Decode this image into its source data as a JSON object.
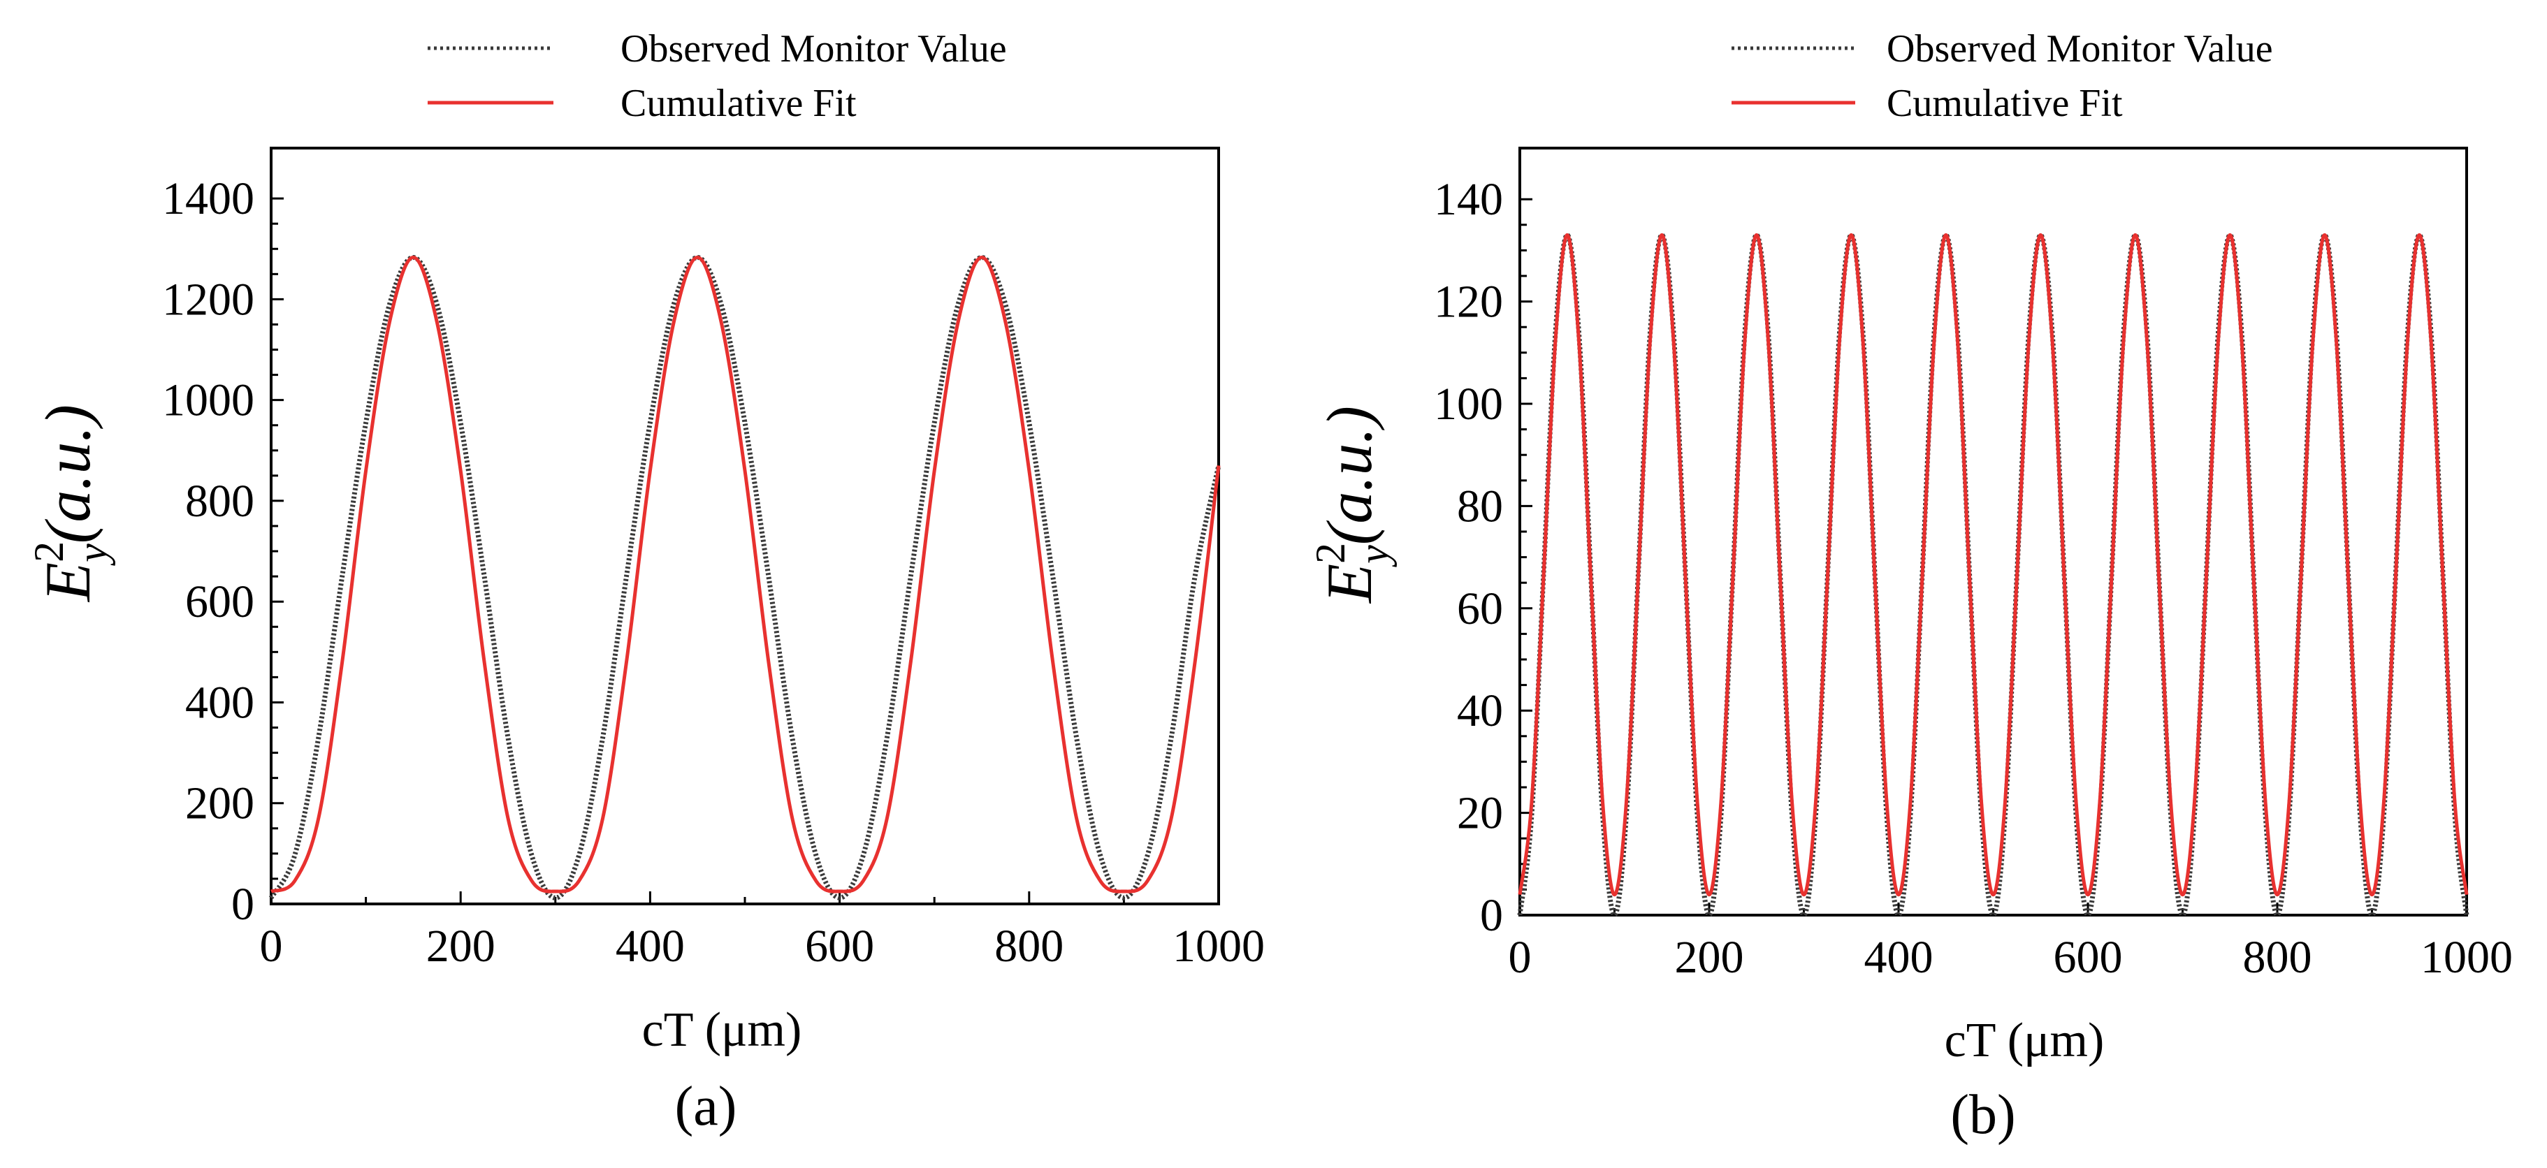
{
  "colors": {
    "observed": "#3a3a3a",
    "fit": "#e8312f",
    "axis": "#000000"
  },
  "chart_data": [
    {
      "type": "line",
      "panel_label": "(a)",
      "xlabel": "cT (μm)",
      "ylabel": {
        "base": "E",
        "sub": "y",
        "sup": "2",
        "rest": "(a.u.)"
      },
      "xlim": [
        0,
        1000
      ],
      "ylim": [
        0,
        1500
      ],
      "xticks": [
        "0",
        "200",
        "400",
        "600",
        "800",
        "1000"
      ],
      "yticks": [
        "0",
        "200",
        "400",
        "600",
        "800",
        "1000",
        "1200",
        "1400"
      ],
      "legend": {
        "position": "top",
        "entries": [
          "Observed Monitor Value",
          "Cumulative Fit"
        ]
      },
      "series": [
        {
          "name": "Observed Monitor Value",
          "style": "dotted",
          "x": [
            0,
            25,
            50,
            75,
            100,
            125,
            150,
            175,
            200,
            225,
            250,
            275,
            300,
            325,
            350,
            375,
            400,
            425,
            450,
            475,
            500,
            525,
            550,
            575,
            600,
            625,
            650,
            675,
            700,
            725,
            750,
            775,
            800,
            825,
            850,
            875,
            900,
            925,
            950,
            975,
            1000
          ],
          "y": [
            12,
            97,
            330,
            650,
            955,
            1190,
            1283,
            1190,
            955,
            650,
            330,
            97,
            12,
            97,
            330,
            650,
            955,
            1190,
            1283,
            1190,
            955,
            650,
            330,
            97,
            12,
            97,
            330,
            650,
            955,
            1190,
            1283,
            1190,
            955,
            650,
            330,
            97,
            12,
            97,
            330,
            650,
            870
          ]
        },
        {
          "name": "Cumulative Fit",
          "style": "solid",
          "x": [
            0,
            25,
            50,
            75,
            100,
            125,
            150,
            175,
            200,
            225,
            250,
            275,
            300,
            325,
            350,
            375,
            400,
            425,
            450,
            475,
            500,
            525,
            550,
            575,
            600,
            625,
            650,
            675,
            700,
            725,
            750,
            775,
            800,
            825,
            850,
            875,
            900,
            925,
            950,
            975,
            1000
          ],
          "y": [
            25,
            46,
            170,
            480,
            860,
            1155,
            1283,
            1155,
            860,
            480,
            170,
            46,
            25,
            46,
            170,
            480,
            860,
            1155,
            1283,
            1155,
            860,
            480,
            170,
            46,
            25,
            46,
            170,
            480,
            860,
            1155,
            1283,
            1155,
            860,
            480,
            170,
            46,
            25,
            46,
            170,
            480,
            870
          ]
        }
      ]
    },
    {
      "type": "line",
      "panel_label": "(b)",
      "xlabel": "cT (μm)",
      "ylabel": {
        "base": "E",
        "sub": "y",
        "sup": "2",
        "rest": "(a.u.)"
      },
      "xlim": [
        0,
        1000
      ],
      "ylim": [
        0,
        150
      ],
      "xticks": [
        "0",
        "200",
        "400",
        "600",
        "800",
        "1000"
      ],
      "yticks": [
        "0",
        "20",
        "40",
        "60",
        "80",
        "100",
        "120",
        "140"
      ],
      "legend": {
        "position": "top",
        "entries": [
          "Observed Monitor Value",
          "Cumulative Fit"
        ]
      },
      "series": [
        {
          "name": "Observed Monitor Value",
          "style": "dotted",
          "x": [
            0,
            12.5,
            25,
            37.5,
            50,
            62.5,
            75,
            87.5,
            100,
            112.5,
            125,
            137.5,
            150,
            162.5,
            175,
            187.5,
            200,
            212.5,
            225,
            237.5,
            250,
            262.5,
            275,
            287.5,
            300,
            312.5,
            325,
            337.5,
            350,
            362.5,
            375,
            387.5,
            400,
            412.5,
            425,
            437.5,
            450,
            462.5,
            475,
            487.5,
            500,
            512.5,
            525,
            537.5,
            550,
            562.5,
            575,
            587.5,
            600,
            612.5,
            625,
            637.5,
            650,
            662.5,
            675,
            687.5,
            700,
            712.5,
            725,
            737.5,
            750,
            762.5,
            775,
            787.5,
            800,
            812.5,
            825,
            837.5,
            850,
            862.5,
            875,
            887.5,
            900,
            912.5,
            925,
            937.5,
            950,
            962.5,
            975,
            987.5,
            1000
          ],
          "y": [
            0,
            19.5,
            66.5,
            113.5,
            133,
            113.5,
            66.5,
            19.5,
            0,
            19.5,
            66.5,
            113.5,
            133,
            113.5,
            66.5,
            19.5,
            0,
            19.5,
            66.5,
            113.5,
            133,
            113.5,
            66.5,
            19.5,
            0,
            19.5,
            66.5,
            113.5,
            133,
            113.5,
            66.5,
            19.5,
            0,
            19.5,
            66.5,
            113.5,
            133,
            113.5,
            66.5,
            19.5,
            0,
            19.5,
            66.5,
            113.5,
            133,
            113.5,
            66.5,
            19.5,
            0,
            19.5,
            66.5,
            113.5,
            133,
            113.5,
            66.5,
            19.5,
            0,
            19.5,
            66.5,
            113.5,
            133,
            113.5,
            66.5,
            19.5,
            0,
            19.5,
            66.5,
            113.5,
            133,
            113.5,
            66.5,
            19.5,
            0,
            19.5,
            66.5,
            113.5,
            133,
            113.5,
            66.5,
            19.5,
            0
          ]
        },
        {
          "name": "Cumulative Fit",
          "style": "solid",
          "x": [
            0,
            12.5,
            25,
            37.5,
            50,
            62.5,
            75,
            87.5,
            100,
            112.5,
            125,
            137.5,
            150,
            162.5,
            175,
            187.5,
            200,
            212.5,
            225,
            237.5,
            250,
            262.5,
            275,
            287.5,
            300,
            312.5,
            325,
            337.5,
            350,
            362.5,
            375,
            387.5,
            400,
            412.5,
            425,
            437.5,
            450,
            462.5,
            475,
            487.5,
            500,
            512.5,
            525,
            537.5,
            550,
            562.5,
            575,
            587.5,
            600,
            612.5,
            625,
            637.5,
            650,
            662.5,
            675,
            687.5,
            700,
            712.5,
            725,
            737.5,
            750,
            762.5,
            775,
            787.5,
            800,
            812.5,
            825,
            837.5,
            850,
            862.5,
            875,
            887.5,
            900,
            912.5,
            925,
            937.5,
            950,
            962.5,
            975,
            987.5,
            1000
          ],
          "y": [
            4,
            22,
            66,
            112,
            133,
            112,
            66,
            22,
            4,
            22,
            66,
            112,
            133,
            112,
            66,
            22,
            4,
            22,
            66,
            112,
            133,
            112,
            66,
            22,
            4,
            22,
            66,
            112,
            133,
            112,
            66,
            22,
            4,
            22,
            66,
            112,
            133,
            112,
            66,
            22,
            4,
            22,
            66,
            112,
            133,
            112,
            66,
            22,
            4,
            22,
            66,
            112,
            133,
            112,
            66,
            22,
            4,
            22,
            66,
            112,
            133,
            112,
            66,
            22,
            4,
            22,
            66,
            112,
            133,
            112,
            66,
            22,
            4,
            22,
            66,
            112,
            133,
            112,
            66,
            22,
            4
          ]
        }
      ]
    }
  ]
}
